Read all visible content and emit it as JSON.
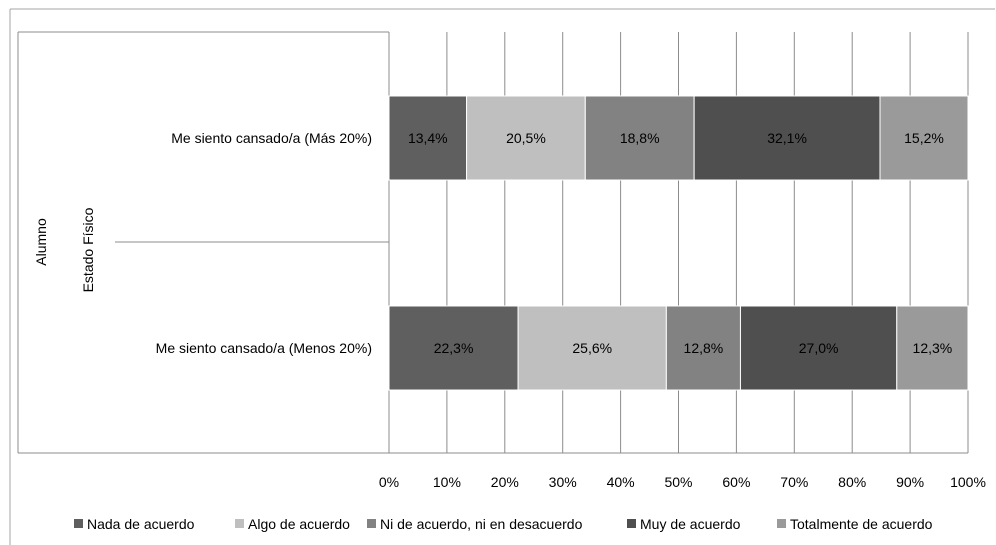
{
  "chart_data": {
    "type": "bar",
    "orientation": "horizontal",
    "stacked": true,
    "percent": true,
    "group_labels": {
      "outer": "Alumno",
      "inner": "Estado Físico"
    },
    "categories": [
      "Me siento cansado/a  (Más 20%)",
      "Me siento cansado/a  (Menos 20%)"
    ],
    "series": [
      {
        "name": "Nada de acuerdo",
        "color": "#5f5f5f",
        "values": [
          13.4,
          22.3
        ],
        "labels": [
          "13,4%",
          "22,3%"
        ]
      },
      {
        "name": "Algo de acuerdo",
        "color": "#bfbfbf",
        "values": [
          20.5,
          25.6
        ],
        "labels": [
          "20,5%",
          "25,6%"
        ]
      },
      {
        "name": "Ni de acuerdo, ni en desacuerdo",
        "color": "#828282",
        "values": [
          18.8,
          12.8
        ],
        "labels": [
          "18,8%",
          "12,8%"
        ]
      },
      {
        "name": "Muy de acuerdo",
        "color": "#4f4f4f",
        "values": [
          32.1,
          27.0
        ],
        "labels": [
          "32,1%",
          "27,0%"
        ]
      },
      {
        "name": "Totalmente de acuerdo",
        "color": "#9a9a9a",
        "values": [
          15.2,
          12.3
        ],
        "labels": [
          "15,2%",
          "12,3%"
        ]
      }
    ],
    "x_ticks": [
      "0%",
      "10%",
      "20%",
      "30%",
      "40%",
      "50%",
      "60%",
      "70%",
      "80%",
      "90%",
      "100%"
    ],
    "xlim": [
      0,
      100
    ],
    "grid": true,
    "legend": "bottom"
  }
}
